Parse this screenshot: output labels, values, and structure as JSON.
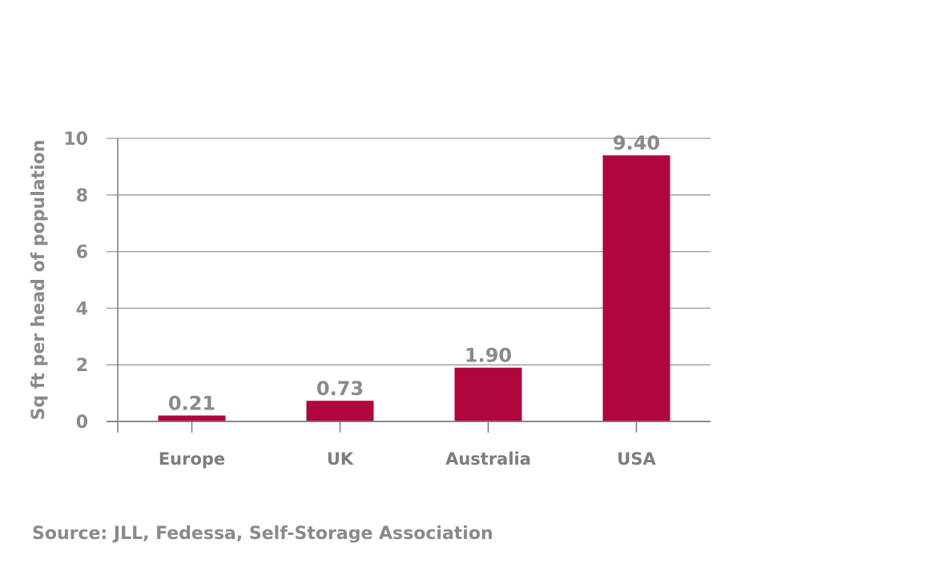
{
  "chart_data": {
    "type": "bar",
    "categories": [
      "Europe",
      "UK",
      "Australia",
      "USA"
    ],
    "values": [
      0.21,
      0.73,
      1.9,
      9.4
    ],
    "value_labels": [
      "0.21",
      "0.73",
      "1.90",
      "9.40"
    ],
    "title": "",
    "xlabel": "",
    "ylabel": "Sq ft per head of population",
    "ylim": [
      0,
      10
    ],
    "yticks": [
      0,
      2,
      4,
      6,
      8,
      10
    ],
    "grid": true,
    "legend": "none",
    "bar_color": "#b0063c",
    "grid_color": "#9a9a9a"
  },
  "source": "Source: JLL, Fedessa, Self-Storage Association"
}
